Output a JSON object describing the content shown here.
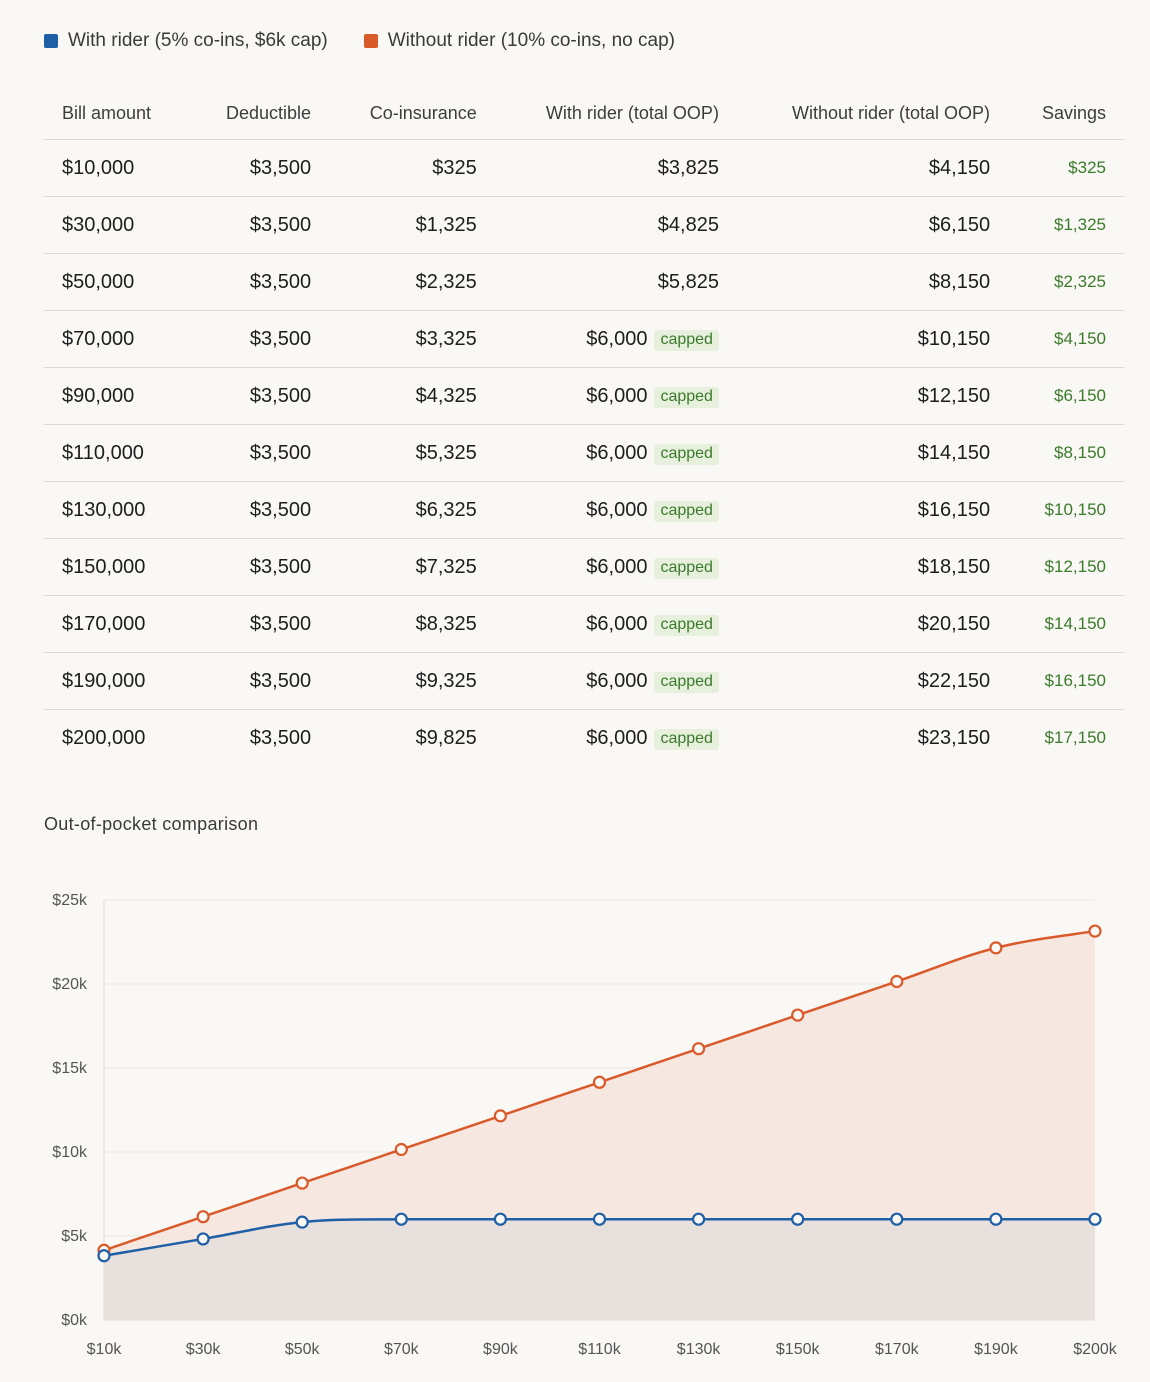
{
  "legend": [
    {
      "label": "With rider (5% co-ins, $6k cap)",
      "color": "#1f5fa6"
    },
    {
      "label": "Without rider (10% co-ins, no cap)",
      "color": "#d95a2b"
    }
  ],
  "table": {
    "headers": [
      "Bill amount",
      "Deductible",
      "Co-insurance",
      "With rider (total OOP)",
      "Without rider (total OOP)",
      "Savings"
    ],
    "cap_label": "capped",
    "rows": [
      {
        "bill": "$10,000",
        "deductible": "$3,500",
        "coins": "$325",
        "with": "$3,825",
        "capped": false,
        "without": "$4,150",
        "savings": "$325"
      },
      {
        "bill": "$30,000",
        "deductible": "$3,500",
        "coins": "$1,325",
        "with": "$4,825",
        "capped": false,
        "without": "$6,150",
        "savings": "$1,325"
      },
      {
        "bill": "$50,000",
        "deductible": "$3,500",
        "coins": "$2,325",
        "with": "$5,825",
        "capped": false,
        "without": "$8,150",
        "savings": "$2,325"
      },
      {
        "bill": "$70,000",
        "deductible": "$3,500",
        "coins": "$3,325",
        "with": "$6,000",
        "capped": true,
        "without": "$10,150",
        "savings": "$4,150"
      },
      {
        "bill": "$90,000",
        "deductible": "$3,500",
        "coins": "$4,325",
        "with": "$6,000",
        "capped": true,
        "without": "$12,150",
        "savings": "$6,150"
      },
      {
        "bill": "$110,000",
        "deductible": "$3,500",
        "coins": "$5,325",
        "with": "$6,000",
        "capped": true,
        "without": "$14,150",
        "savings": "$8,150"
      },
      {
        "bill": "$130,000",
        "deductible": "$3,500",
        "coins": "$6,325",
        "with": "$6,000",
        "capped": true,
        "without": "$16,150",
        "savings": "$10,150"
      },
      {
        "bill": "$150,000",
        "deductible": "$3,500",
        "coins": "$7,325",
        "with": "$6,000",
        "capped": true,
        "without": "$18,150",
        "savings": "$12,150"
      },
      {
        "bill": "$170,000",
        "deductible": "$3,500",
        "coins": "$8,325",
        "with": "$6,000",
        "capped": true,
        "without": "$20,150",
        "savings": "$14,150"
      },
      {
        "bill": "$190,000",
        "deductible": "$3,500",
        "coins": "$9,325",
        "with": "$6,000",
        "capped": true,
        "without": "$22,150",
        "savings": "$16,150"
      },
      {
        "bill": "$200,000",
        "deductible": "$3,500",
        "coins": "$9,825",
        "with": "$6,000",
        "capped": true,
        "without": "$23,150",
        "savings": "$17,150"
      }
    ]
  },
  "chart_title": "Out-of-pocket comparison",
  "chart_data": {
    "type": "area",
    "categories": [
      "$10k",
      "$30k",
      "$50k",
      "$70k",
      "$90k",
      "$110k",
      "$130k",
      "$150k",
      "$170k",
      "$190k",
      "$200k"
    ],
    "y_ticks": [
      "$0k",
      "$5k",
      "$10k",
      "$15k",
      "$20k",
      "$25k"
    ],
    "ylim": [
      0,
      25000
    ],
    "grid": true,
    "series": [
      {
        "name": "Without rider (10% co-ins, no cap)",
        "color": "#d95a2b",
        "fill": "#f6e4dd",
        "values": [
          4150,
          6150,
          8150,
          10150,
          12150,
          14150,
          16150,
          18150,
          20150,
          22150,
          23150
        ]
      },
      {
        "name": "With rider (5% co-ins, $6k cap)",
        "color": "#1f5fa6",
        "fill": "#e4dfdd",
        "values": [
          3825,
          4825,
          5825,
          6000,
          6000,
          6000,
          6000,
          6000,
          6000,
          6000,
          6000
        ]
      }
    ]
  }
}
